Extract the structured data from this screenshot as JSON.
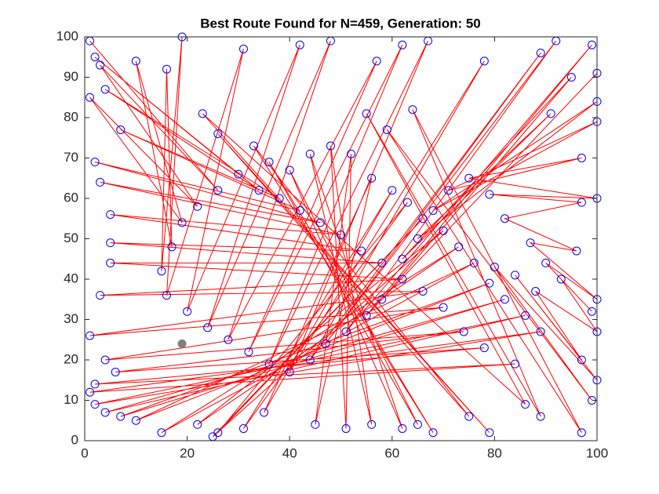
{
  "chart_data": {
    "type": "route",
    "title": "Best Route Found for N=459, Generation: 50",
    "xlim": [
      0,
      100
    ],
    "ylim": [
      0,
      100
    ],
    "xticks": [
      0,
      20,
      40,
      60,
      80,
      100
    ],
    "yticks": [
      0,
      10,
      20,
      30,
      40,
      50,
      60,
      70,
      80,
      90,
      100
    ],
    "grid": false,
    "series": [
      {
        "color": "#ff0000",
        "marker_color": "#0000ff",
        "x": [
          1,
          26,
          3,
          22,
          1,
          19,
          10,
          17,
          16,
          15,
          19,
          16,
          31,
          20,
          42,
          24,
          48,
          28,
          57,
          32,
          62,
          36,
          67,
          40,
          78,
          44,
          89,
          47,
          92,
          51,
          99,
          55,
          100,
          58,
          95,
          62,
          91,
          65,
          100,
          68,
          100,
          71,
          97,
          75,
          100,
          79,
          97,
          82,
          96,
          87,
          100,
          90,
          99,
          93,
          100,
          88,
          97,
          84,
          100,
          80,
          99,
          59,
          97,
          64,
          89,
          55,
          86,
          23,
          79,
          26,
          75,
          33,
          68,
          36,
          65,
          40,
          62,
          44,
          56,
          48,
          51,
          52,
          45,
          56,
          35,
          60,
          31,
          63,
          26,
          66,
          25,
          70,
          22,
          73,
          15,
          76,
          10,
          79,
          7,
          82,
          4,
          86,
          2,
          89,
          1,
          84,
          2,
          78,
          6,
          74,
          4,
          70,
          1,
          66,
          3,
          62,
          5,
          58,
          5,
          54,
          5,
          50,
          3,
          46,
          2,
          42,
          7,
          38,
          4,
          34,
          2,
          30
        ],
        "y": [
          99,
          62,
          93,
          58,
          85,
          54,
          94,
          48,
          92,
          42,
          100,
          36,
          97,
          32,
          98,
          28,
          99,
          25,
          94,
          22,
          98,
          19,
          99,
          17,
          94,
          20,
          96,
          24,
          99,
          27,
          98,
          31,
          91,
          35,
          90,
          45,
          81,
          50,
          84,
          57,
          79,
          62,
          70,
          65,
          60,
          61,
          59,
          55,
          47,
          49,
          35,
          44,
          32,
          40,
          27,
          37,
          20,
          41,
          15,
          43,
          10,
          77,
          2,
          82,
          6,
          81,
          9,
          81,
          2,
          76,
          6,
          73,
          2,
          69,
          4,
          67,
          3,
          71,
          4,
          73,
          3,
          71,
          4,
          65,
          7,
          62,
          3,
          59,
          2,
          55,
          1,
          52,
          4,
          48,
          2,
          44,
          5,
          39,
          6,
          35,
          7,
          31,
          9,
          27,
          12,
          19,
          14,
          23,
          17,
          27,
          20,
          33,
          26,
          37,
          36,
          40,
          44,
          44,
          49,
          47,
          56,
          51,
          64,
          54,
          69,
          57,
          77,
          60,
          87,
          62,
          95,
          66
        ]
      }
    ],
    "start": {
      "color": "#808080",
      "x": 19,
      "y": 24
    }
  }
}
